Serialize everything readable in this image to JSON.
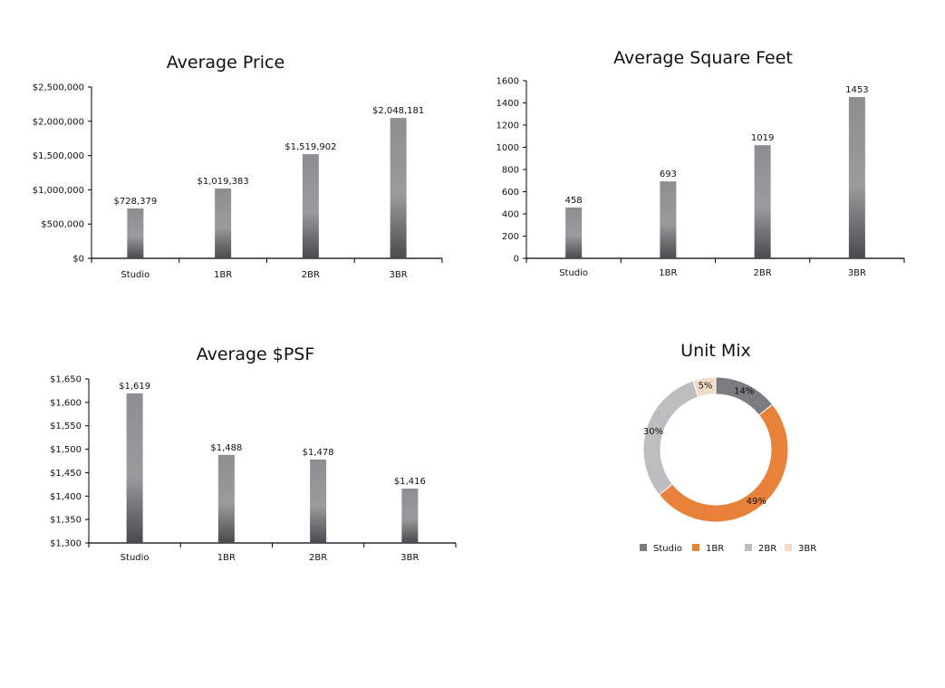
{
  "chart_data": [
    {
      "id": "price",
      "type": "bar",
      "title": "Average Price",
      "categories": [
        "Studio",
        "1BR",
        "2BR",
        "3BR"
      ],
      "values": [
        728379,
        1019383,
        1519902,
        2048181
      ],
      "value_labels": [
        "$728,379",
        "$1,019,383",
        "$1,519,902",
        "$2,048,181"
      ],
      "ylim": [
        0,
        2500000
      ],
      "yticks": [
        0,
        500000,
        1000000,
        1500000,
        2000000,
        2500000
      ],
      "ytick_labels": [
        "$0",
        "$500,000",
        "$1,000,000",
        "$1,500,000",
        "$2,000,000",
        "$2,500,000"
      ],
      "grid": false
    },
    {
      "id": "sqft",
      "type": "bar",
      "title": "Average Square Feet",
      "categories": [
        "Studio",
        "1BR",
        "2BR",
        "3BR"
      ],
      "values": [
        458,
        693,
        1019,
        1453
      ],
      "value_labels": [
        "458",
        "693",
        "1019",
        "1453"
      ],
      "ylim": [
        0,
        1600
      ],
      "yticks": [
        0,
        200,
        400,
        600,
        800,
        1000,
        1200,
        1400,
        1600
      ],
      "ytick_labels": [
        "0",
        "200",
        "400",
        "600",
        "800",
        "1000",
        "1200",
        "1400",
        "1600"
      ],
      "grid": false
    },
    {
      "id": "psf",
      "type": "bar",
      "title": "Average $PSF",
      "categories": [
        "Studio",
        "1BR",
        "2BR",
        "3BR"
      ],
      "values": [
        1619,
        1488,
        1478,
        1416
      ],
      "value_labels": [
        "$1,619",
        "$1,488",
        "$1,478",
        "$1,416"
      ],
      "ylim": [
        1300,
        1650
      ],
      "yticks": [
        1300,
        1350,
        1400,
        1450,
        1500,
        1550,
        1600,
        1650
      ],
      "ytick_labels": [
        "$1,300",
        "$1,350",
        "$1,400",
        "$1,450",
        "$1,500",
        "$1,550",
        "$1,600",
        "$1,650"
      ],
      "grid": false
    },
    {
      "id": "mix",
      "type": "pie",
      "donut": true,
      "title": "Unit Mix",
      "labels": [
        "Studio",
        "1BR",
        "2BR",
        "3BR"
      ],
      "values": [
        14,
        49,
        30,
        5
      ],
      "value_labels": [
        "14%",
        "49%",
        "30%",
        "5%"
      ],
      "colors": [
        "#7b7b80",
        "#e8813a",
        "#bdbdc0",
        "#f3dcc6"
      ],
      "legend": "bottom"
    }
  ],
  "colors": {
    "bar_top": "#8f8f93",
    "bar_mid": "#9a9a9d",
    "bar_bottom": "#4d4d52",
    "axis": "#000000"
  }
}
